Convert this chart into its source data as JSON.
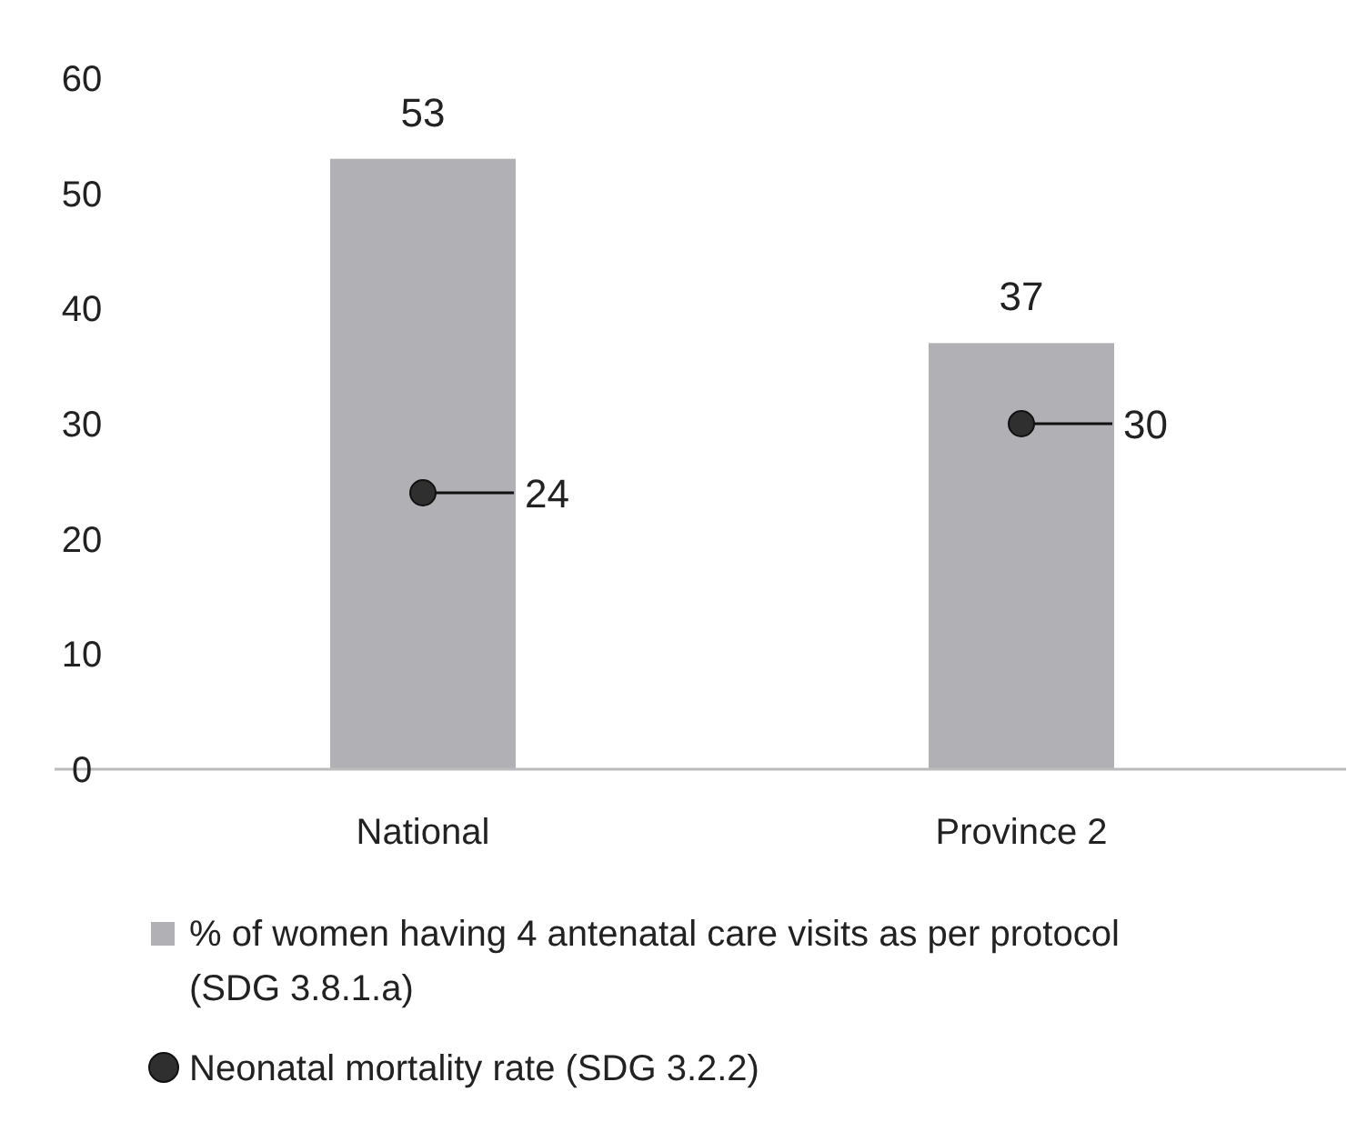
{
  "chart_data": {
    "type": "bar",
    "categories": [
      "National",
      "Province 2"
    ],
    "series": [
      {
        "name": "% of women having 4 antenatal care visits as per protocol (SDG 3.8.1.a)",
        "color": "#b1b1b5",
        "values": [
          53,
          37
        ]
      },
      {
        "name": "Neonatal mortality rate  (SDG 3.2.2)",
        "type": "scatter",
        "color": "#2f2f2f",
        "values": [
          24,
          30
        ]
      }
    ],
    "ylim": [
      0,
      60
    ],
    "yticks": [
      0,
      10,
      20,
      30,
      40,
      50,
      60
    ],
    "grid": false,
    "legend": "bottom",
    "marker": "circle",
    "data_labels": true
  }
}
